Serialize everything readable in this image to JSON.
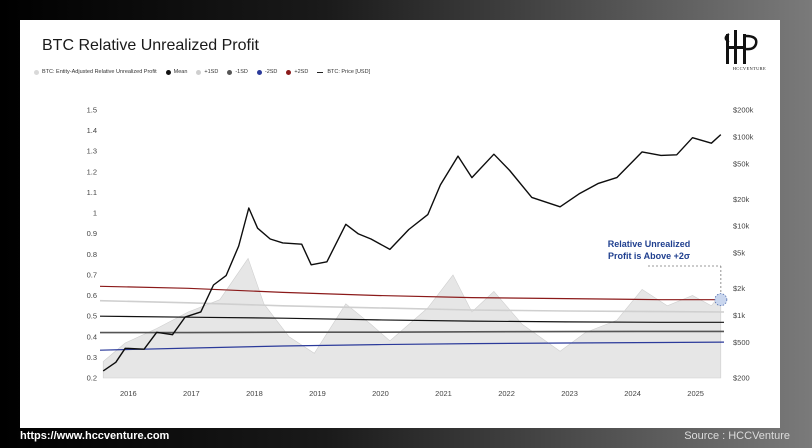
{
  "page": {
    "footer_url": "https://www.hccventure.com",
    "footer_source": "Source : HCCVenture",
    "logo_text": "HCCVENTURE"
  },
  "chart_data": {
    "type": "line",
    "title": "BTC Relative Unrealized Profit",
    "legend": [
      {
        "label": "BTC: Entity-Adjusted Relative Unrealized Profit",
        "color": "#d9d9d9",
        "marker": "dot"
      },
      {
        "label": "Mean",
        "color": "#111111",
        "marker": "dot"
      },
      {
        "label": "+1SD",
        "color": "#cfcfcf",
        "marker": "dot"
      },
      {
        "label": "-1SD",
        "color": "#555555",
        "marker": "dot"
      },
      {
        "label": "-2SD",
        "color": "#2b3a9a",
        "marker": "dot"
      },
      {
        "label": "+2SD",
        "color": "#8b1a1a",
        "marker": "dot"
      },
      {
        "label": "BTC: Price [USD]",
        "color": "#111111",
        "marker": "dash"
      }
    ],
    "left_axis": {
      "ticks": [
        "1.5",
        "1.4",
        "1.3",
        "1.2",
        "1.1",
        "1",
        "0.9",
        "0.8",
        "0.7",
        "0.6",
        "0.5",
        "0.4",
        "0.3",
        "0.2"
      ],
      "range": [
        0.2,
        1.5
      ]
    },
    "right_axis": {
      "scale": "log",
      "ticks": [
        "$200k",
        "$100k",
        "$50k",
        "$20k",
        "$10k",
        "$5k",
        "$2k",
        "$1k",
        "$500",
        "$200"
      ],
      "range": [
        200,
        200000
      ]
    },
    "x_axis": {
      "ticks": [
        "2016",
        "2017",
        "2018",
        "2019",
        "2020",
        "2021",
        "2022",
        "2023",
        "2024",
        "2025"
      ],
      "range": [
        2015.6,
        2025.5
      ]
    },
    "series": [
      {
        "name": "BTC: Price [USD]",
        "axis": "right",
        "x": [
          2015.65,
          2015.85,
          2016.0,
          2016.3,
          2016.5,
          2016.75,
          2016.95,
          2017.2,
          2017.4,
          2017.6,
          2017.8,
          2017.96,
          2018.1,
          2018.3,
          2018.5,
          2018.8,
          2018.95,
          2019.2,
          2019.5,
          2019.7,
          2019.9,
          2020.2,
          2020.5,
          2020.8,
          2021.0,
          2021.28,
          2021.5,
          2021.85,
          2022.1,
          2022.45,
          2022.9,
          2023.2,
          2023.5,
          2023.8,
          2024.2,
          2024.5,
          2024.75,
          2025.0,
          2025.3,
          2025.45
        ],
        "y": [
          240,
          300,
          430,
          420,
          650,
          610,
          960,
          1100,
          2200,
          2800,
          6000,
          16000,
          9500,
          7200,
          6500,
          6300,
          3700,
          4000,
          10500,
          8200,
          7200,
          5500,
          9200,
          13500,
          29000,
          61000,
          35000,
          64000,
          42000,
          21000,
          16500,
          23000,
          30000,
          35000,
          68000,
          62000,
          63000,
          98000,
          85000,
          106000
        ]
      },
      {
        "name": "+2SD",
        "axis": "left",
        "x": [
          2015.6,
          2017.0,
          2018.5,
          2020.0,
          2021.5,
          2023.0,
          2024.5,
          2025.5
        ],
        "y": [
          0.645,
          0.635,
          0.615,
          0.6,
          0.59,
          0.585,
          0.58,
          0.58
        ]
      },
      {
        "name": "+1SD",
        "axis": "left",
        "x": [
          2015.6,
          2017.0,
          2018.5,
          2020.0,
          2021.5,
          2023.0,
          2024.5,
          2025.5
        ],
        "y": [
          0.575,
          0.565,
          0.55,
          0.54,
          0.53,
          0.525,
          0.522,
          0.52
        ]
      },
      {
        "name": "Mean",
        "axis": "left",
        "x": [
          2015.6,
          2017.0,
          2018.5,
          2020.0,
          2021.5,
          2023.0,
          2024.5,
          2025.5
        ],
        "y": [
          0.5,
          0.495,
          0.49,
          0.482,
          0.476,
          0.472,
          0.47,
          0.47
        ]
      },
      {
        "name": "-1SD",
        "axis": "left",
        "x": [
          2015.6,
          2017.0,
          2018.5,
          2020.0,
          2021.5,
          2023.0,
          2024.5,
          2025.5
        ],
        "y": [
          0.42,
          0.42,
          0.422,
          0.422,
          0.424,
          0.425,
          0.426,
          0.426
        ]
      },
      {
        "name": "-2SD",
        "axis": "left",
        "x": [
          2015.6,
          2017.0,
          2018.5,
          2020.0,
          2021.5,
          2023.0,
          2024.5,
          2025.5
        ],
        "y": [
          0.335,
          0.345,
          0.355,
          0.362,
          0.367,
          0.37,
          0.372,
          0.374
        ]
      },
      {
        "name": "BTC: Entity-Adjusted Relative Unrealized Profit",
        "axis": "left",
        "x": [
          2015.65,
          2016.0,
          2016.5,
          2017.0,
          2017.5,
          2017.95,
          2018.2,
          2018.6,
          2019.0,
          2019.5,
          2019.9,
          2020.2,
          2020.8,
          2021.2,
          2021.5,
          2021.85,
          2022.3,
          2022.9,
          2023.3,
          2023.8,
          2024.2,
          2024.6,
          2025.0,
          2025.3,
          2025.45
        ],
        "y": [
          0.28,
          0.37,
          0.44,
          0.52,
          0.58,
          0.78,
          0.56,
          0.4,
          0.32,
          0.56,
          0.46,
          0.38,
          0.54,
          0.7,
          0.52,
          0.62,
          0.46,
          0.33,
          0.42,
          0.48,
          0.63,
          0.55,
          0.6,
          0.55,
          0.61
        ]
      }
    ],
    "annotation": {
      "lines": [
        "Relative Unrealized",
        "Profit is Above +2σ"
      ],
      "x": 2025.45,
      "y": 0.58
    }
  }
}
